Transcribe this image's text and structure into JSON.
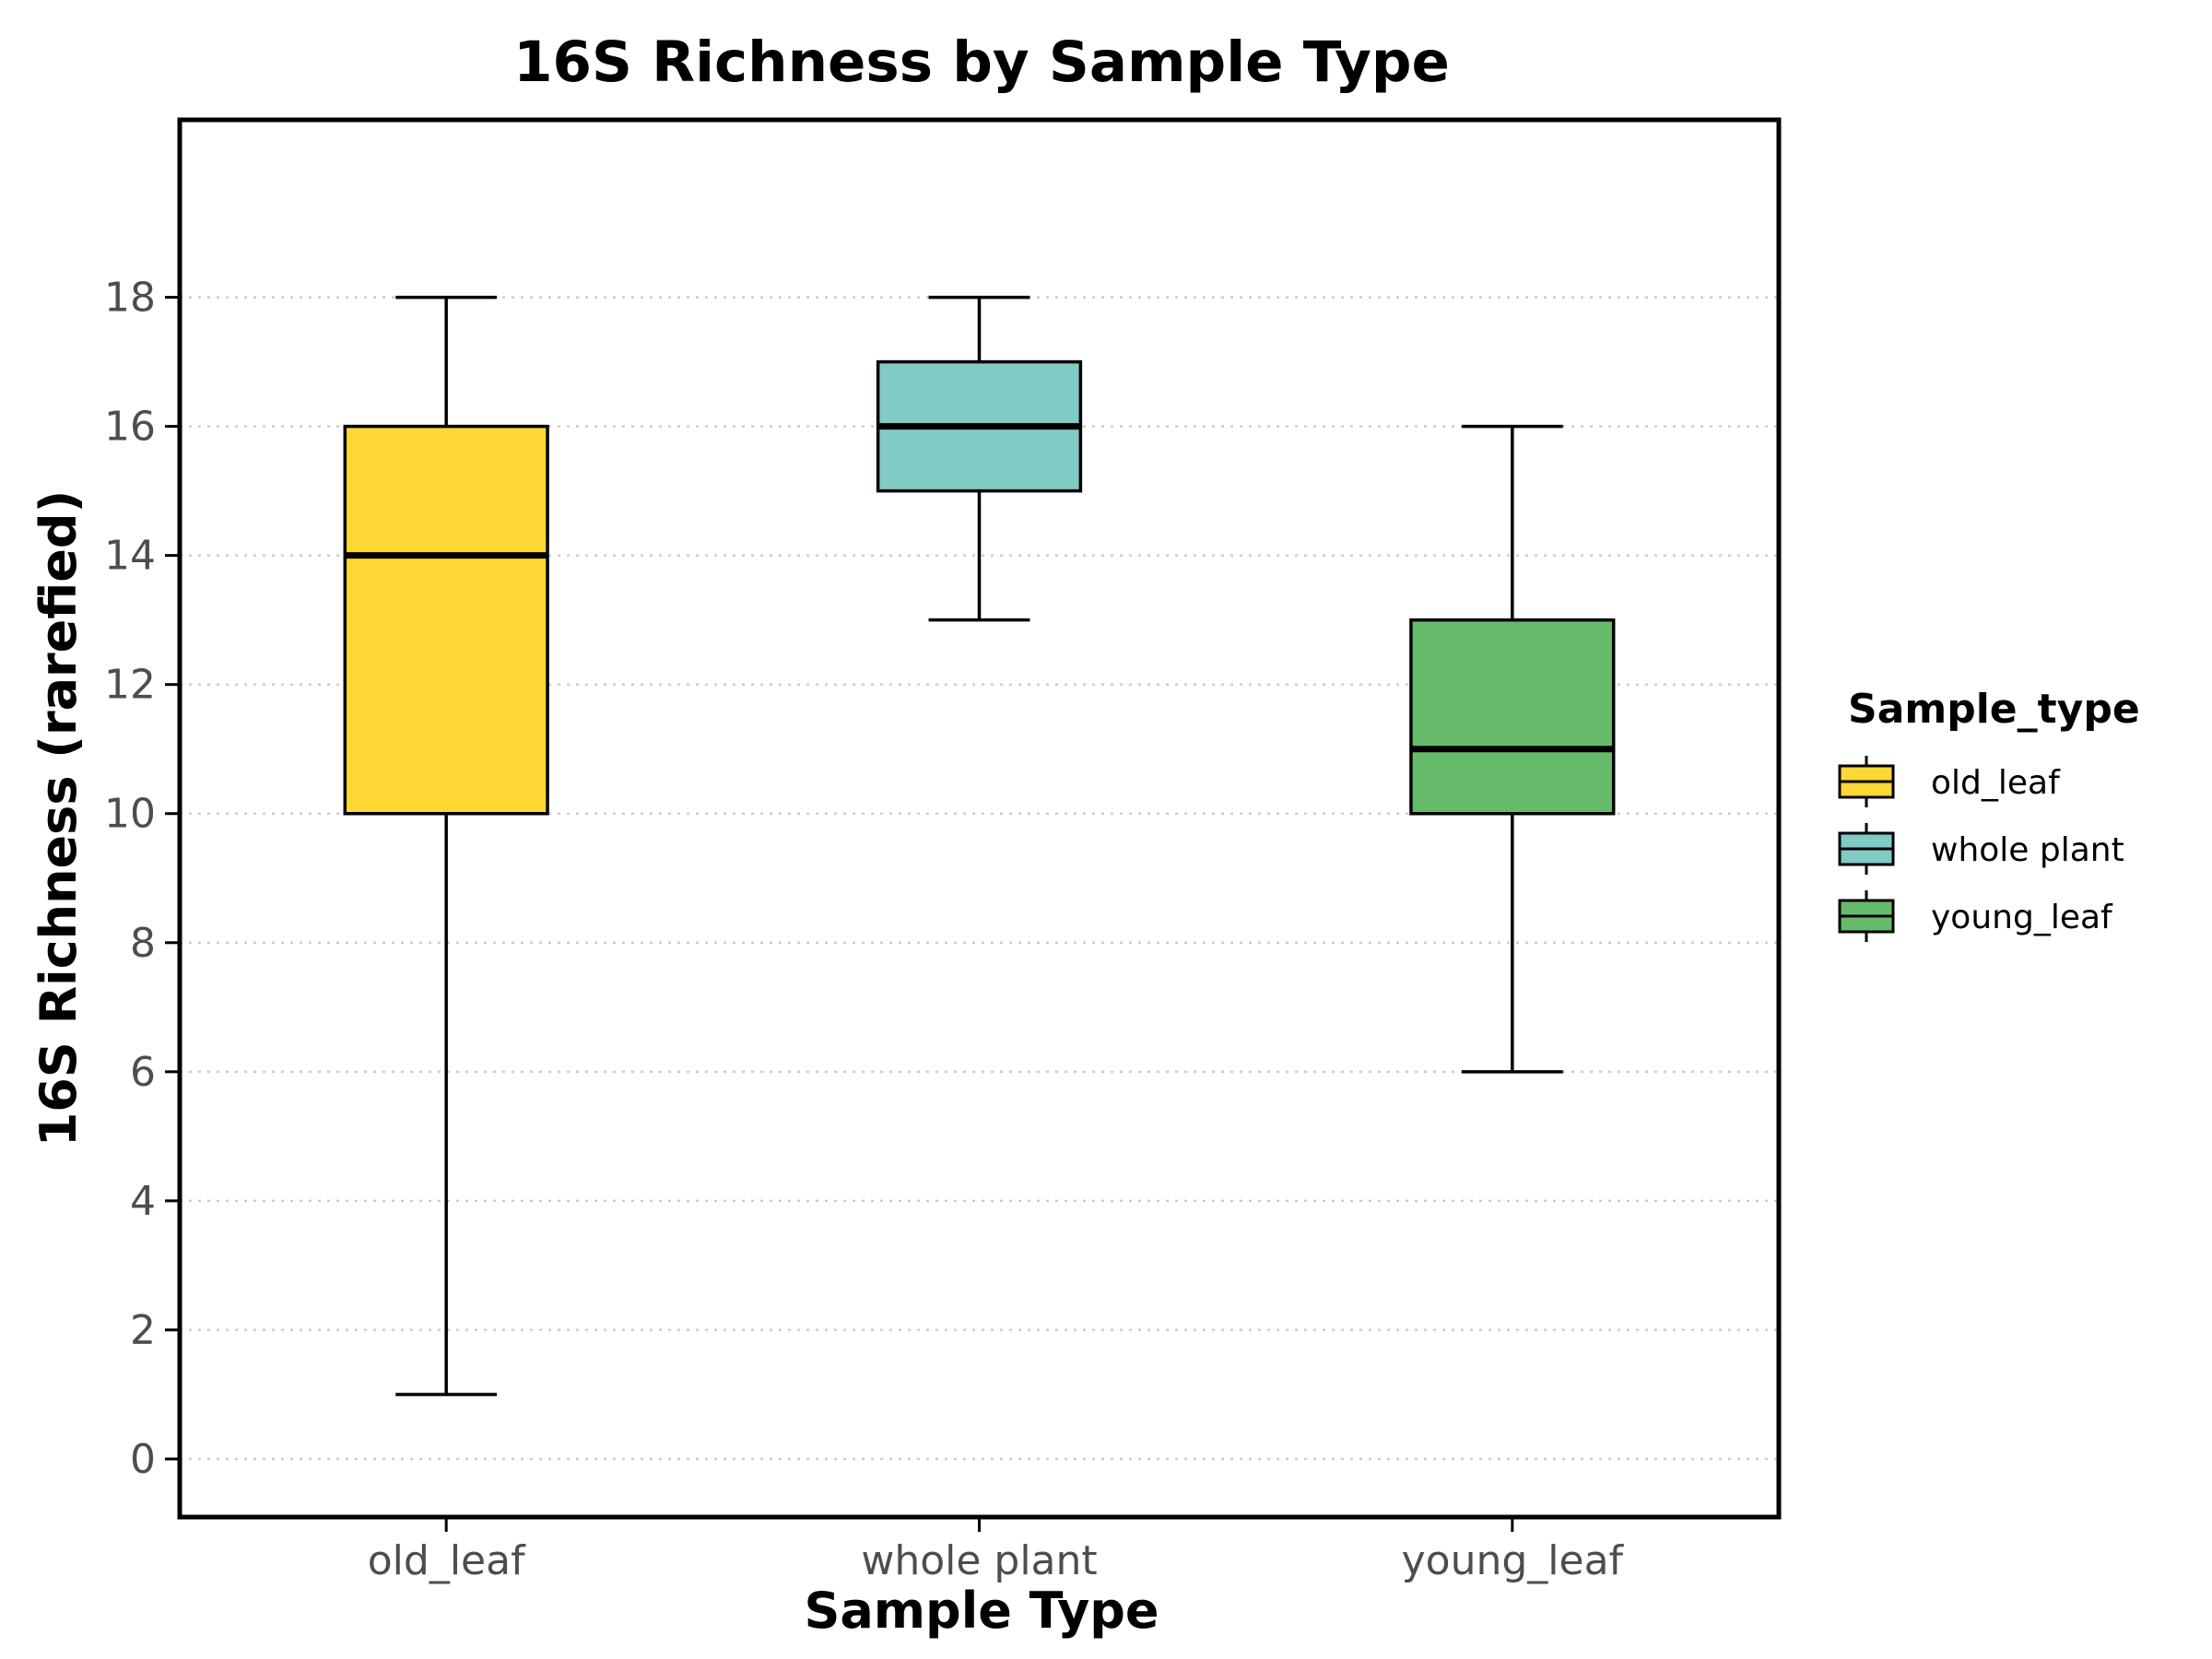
{
  "chart_data": {
    "type": "boxplot",
    "title": "16S Richness by Sample Type",
    "xlabel": "Sample Type",
    "ylabel": "16S Richness (rarefied)",
    "ylim": [
      -0.9,
      20.75
    ],
    "yticks": [
      0,
      2,
      4,
      6,
      8,
      10,
      12,
      14,
      16,
      18
    ],
    "grid": "horizontal dotted",
    "legend": {
      "title": "Sample_type",
      "placement": "right",
      "entries": [
        "old_leaf",
        "whole plant",
        "young_leaf"
      ]
    },
    "categories": [
      "old_leaf",
      "whole plant",
      "young_leaf"
    ],
    "series": [
      {
        "category": "old_leaf",
        "color": "#FDD835",
        "min": 1,
        "q1": 10,
        "median": 14,
        "q3": 16,
        "max": 18
      },
      {
        "category": "whole plant",
        "color": "#80CBC4",
        "min": 13,
        "q1": 15,
        "median": 16,
        "q3": 17,
        "max": 18
      },
      {
        "category": "young_leaf",
        "color": "#66BB6A",
        "min": 6,
        "q1": 10,
        "median": 11,
        "q3": 13,
        "max": 16
      }
    ]
  }
}
